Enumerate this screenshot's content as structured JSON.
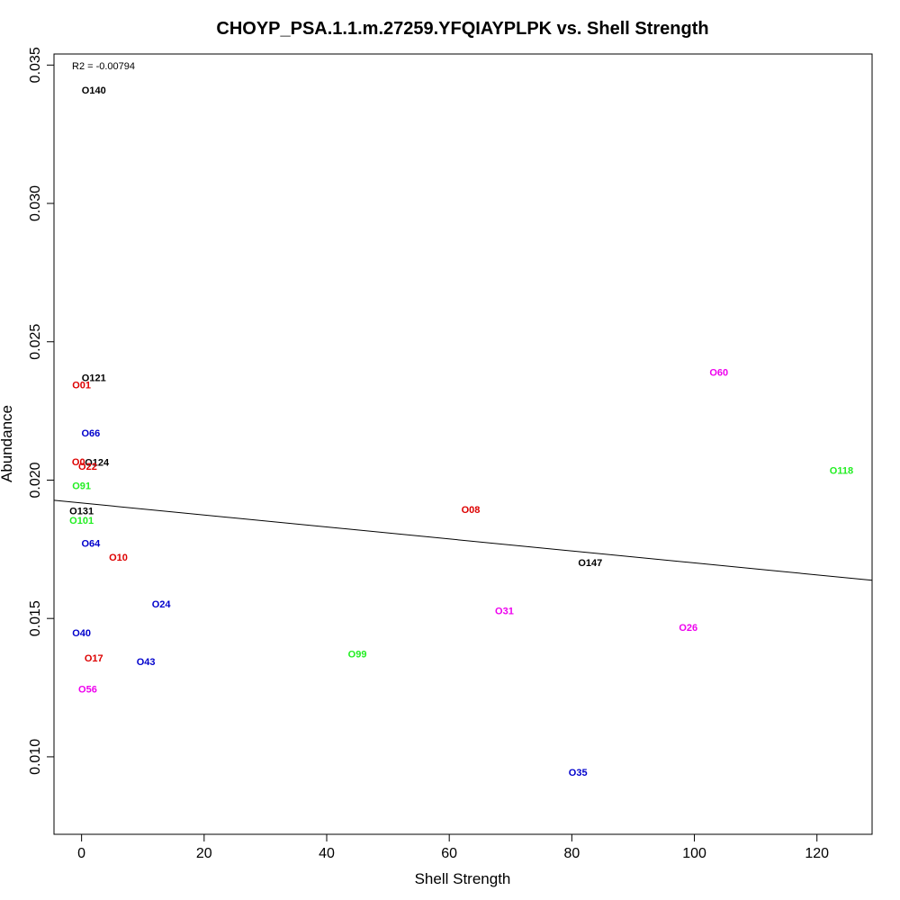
{
  "chart_data": {
    "type": "scatter",
    "title": "CHOYP_PSA.1.1.m.27259.YFQIAYPLPK vs. Shell Strength",
    "xlabel": "Shell Strength",
    "ylabel": "Abundance",
    "xlim": [
      -4.5,
      129
    ],
    "ylim": [
      0.0072,
      0.0354
    ],
    "xticks": [
      0,
      20,
      40,
      60,
      80,
      100,
      120
    ],
    "yticks": [
      0.01,
      0.015,
      0.02,
      0.025,
      0.03,
      0.035
    ],
    "ytick_labels": [
      "0.010",
      "0.015",
      "0.020",
      "0.025",
      "0.030",
      "0.035"
    ],
    "grid": false,
    "annotation": "R2 = -0.00794",
    "regression_line": {
      "x": [
        -4.5,
        129
      ],
      "y": [
        0.01927,
        0.01638
      ]
    },
    "colors": {
      "black": "#000000",
      "red": "#dd0000",
      "blue": "#0000cc",
      "green": "#22ee22",
      "magenta": "#ee00ee"
    },
    "points": [
      {
        "label": "O140",
        "x": 2,
        "y": 0.0341,
        "color": "black"
      },
      {
        "label": "O121",
        "x": 2,
        "y": 0.0237,
        "color": "black"
      },
      {
        "label": "O01",
        "x": 0,
        "y": 0.02345,
        "color": "red"
      },
      {
        "label": "O66",
        "x": 1.5,
        "y": 0.0217,
        "color": "blue"
      },
      {
        "label": "O124",
        "x": 2.5,
        "y": 0.02065,
        "color": "black"
      },
      {
        "label": "O22",
        "x": 1,
        "y": 0.0205,
        "color": "red"
      },
      {
        "label": "O0",
        "x": -0.5,
        "y": 0.02067,
        "color": "red"
      },
      {
        "label": "O91",
        "x": 0,
        "y": 0.0198,
        "color": "green"
      },
      {
        "label": "O131",
        "x": 0,
        "y": 0.0189,
        "color": "black"
      },
      {
        "label": "O101",
        "x": 0,
        "y": 0.01855,
        "color": "green"
      },
      {
        "label": "O64",
        "x": 1.5,
        "y": 0.01772,
        "color": "blue"
      },
      {
        "label": "O10",
        "x": 6,
        "y": 0.01722,
        "color": "red"
      },
      {
        "label": "O24",
        "x": 13,
        "y": 0.01552,
        "color": "blue"
      },
      {
        "label": "O40",
        "x": 0,
        "y": 0.01448,
        "color": "blue"
      },
      {
        "label": "O17",
        "x": 2,
        "y": 0.01358,
        "color": "red"
      },
      {
        "label": "O43",
        "x": 10.5,
        "y": 0.01345,
        "color": "blue"
      },
      {
        "label": "O56",
        "x": 1,
        "y": 0.01245,
        "color": "magenta"
      },
      {
        "label": "O99",
        "x": 45,
        "y": 0.01372,
        "color": "green"
      },
      {
        "label": "O08",
        "x": 63.5,
        "y": 0.01895,
        "color": "red"
      },
      {
        "label": "O31",
        "x": 69,
        "y": 0.01528,
        "color": "magenta"
      },
      {
        "label": "O147",
        "x": 83,
        "y": 0.01702,
        "color": "black"
      },
      {
        "label": "O35",
        "x": 81,
        "y": 0.00945,
        "color": "blue"
      },
      {
        "label": "O26",
        "x": 99,
        "y": 0.01468,
        "color": "magenta"
      },
      {
        "label": "O60",
        "x": 104,
        "y": 0.0239,
        "color": "magenta"
      },
      {
        "label": "O118",
        "x": 124,
        "y": 0.02035,
        "color": "green"
      }
    ]
  }
}
